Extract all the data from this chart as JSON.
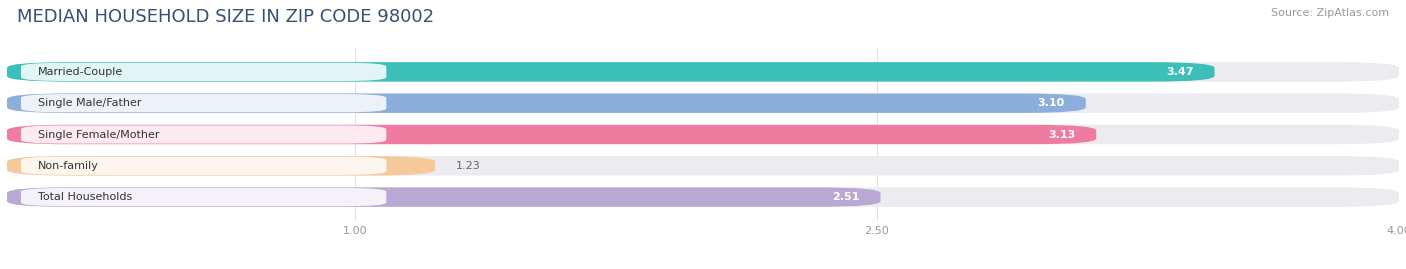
{
  "title": "MEDIAN HOUSEHOLD SIZE IN ZIP CODE 98002",
  "source": "Source: ZipAtlas.com",
  "categories": [
    "Married-Couple",
    "Single Male/Father",
    "Single Female/Mother",
    "Non-family",
    "Total Households"
  ],
  "values": [
    3.47,
    3.1,
    3.13,
    1.23,
    2.51
  ],
  "bar_colors": [
    "#3BBFB8",
    "#8BAEDD",
    "#F07BA0",
    "#F5C99A",
    "#B9A8D4"
  ],
  "xlim": [
    0,
    4.0
  ],
  "xticks": [
    1.0,
    2.5,
    4.0
  ],
  "bar_height": 0.62,
  "background_color": "#ffffff",
  "bar_bg_color": "#ebebf0",
  "title_color": "#3a5070",
  "title_fontsize": 13,
  "label_fontsize": 8,
  "value_fontsize": 8,
  "source_fontsize": 8,
  "tick_fontsize": 8,
  "value_label_color": "#ffffff",
  "dark_value_color": "#666666"
}
